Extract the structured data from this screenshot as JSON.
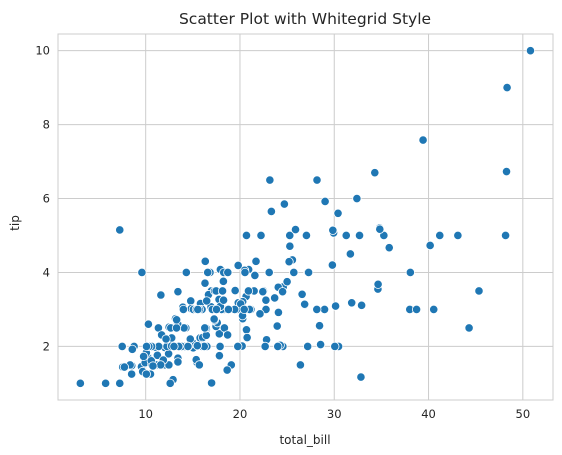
{
  "chart_data": {
    "type": "scatter",
    "title": "Scatter Plot with Whitegrid Style",
    "xlabel": "total_bill",
    "ylabel": "tip",
    "xlim": [
      0.7,
      53.2
    ],
    "ylim": [
      0.55,
      10.45
    ],
    "xticks": [
      10,
      20,
      30,
      40,
      50
    ],
    "yticks": [
      2,
      4,
      6,
      8,
      10
    ],
    "grid": true,
    "series": [
      {
        "color": "#1f77b4",
        "x": [
          16.99,
          10.34,
          21.01,
          23.68,
          24.59,
          25.29,
          8.77,
          26.88,
          15.04,
          14.78,
          10.27,
          35.26,
          15.42,
          18.43,
          14.83,
          21.58,
          10.33,
          16.29,
          16.97,
          20.65,
          17.92,
          20.29,
          15.77,
          39.42,
          19.82,
          17.81,
          13.37,
          12.69,
          21.7,
          19.65,
          9.55,
          18.35,
          15.06,
          20.69,
          17.78,
          24.06,
          16.31,
          16.93,
          18.69,
          31.27,
          16.04,
          17.46,
          13.94,
          9.68,
          30.4,
          18.29,
          22.23,
          32.4,
          28.55,
          18.04,
          12.54,
          10.29,
          34.81,
          9.94,
          25.56,
          19.49,
          38.01,
          26.41,
          11.24,
          48.27,
          20.29,
          13.81,
          11.02,
          18.29,
          17.59,
          20.08,
          16.45,
          3.07,
          20.23,
          15.01,
          12.02,
          17.07,
          26.86,
          25.28,
          14.73,
          10.51,
          17.92,
          27.2,
          22.76,
          17.29,
          19.44,
          16.66,
          10.07,
          32.68,
          15.98,
          34.83,
          13.03,
          18.28,
          24.71,
          21.16,
          28.97,
          22.49,
          5.75,
          16.32,
          22.75,
          40.17,
          27.28,
          12.03,
          21.01,
          12.46,
          11.35,
          15.38,
          44.3,
          22.42,
          20.92,
          15.36,
          20.49,
          25.21,
          18.24,
          14.31,
          14.0,
          7.25,
          38.07,
          23.95,
          25.71,
          17.31,
          29.93,
          10.65,
          12.43,
          24.08,
          11.69,
          13.42,
          14.26,
          15.95,
          12.48,
          29.8,
          8.52,
          14.52,
          11.38,
          22.82,
          19.08,
          20.27,
          11.17,
          12.26,
          18.26,
          8.51,
          10.33,
          14.15,
          16.0,
          13.16,
          17.47,
          34.3,
          41.19,
          27.05,
          16.43,
          8.35,
          18.64,
          11.87,
          9.78,
          7.51,
          14.07,
          13.13,
          17.26,
          24.55,
          19.77,
          29.85,
          48.17,
          25.0,
          13.39,
          16.49,
          21.5,
          12.66,
          16.21,
          13.81,
          17.51,
          24.52,
          20.76,
          31.71,
          10.59,
          10.63,
          50.81,
          15.81,
          7.25,
          31.85,
          16.82,
          32.9,
          17.89,
          14.48,
          9.6,
          34.63,
          34.65,
          23.33,
          45.35,
          23.17,
          40.55,
          20.69,
          20.9,
          30.46,
          18.15,
          23.1,
          15.69,
          19.81,
          28.44,
          15.48,
          16.58,
          7.56,
          10.34,
          43.11,
          13.0,
          13.51,
          18.71,
          12.74,
          13.0,
          16.4,
          20.53,
          16.47,
          26.59,
          38.73,
          24.27,
          12.76,
          30.06,
          25.89,
          48.33,
          13.27,
          28.17,
          12.9,
          28.15,
          11.59,
          7.74,
          30.14,
          12.16,
          13.42,
          8.58,
          15.98,
          13.42,
          16.27,
          10.09,
          20.45,
          13.28,
          22.12,
          24.01,
          15.69,
          11.61,
          10.77,
          15.53,
          10.07,
          12.6,
          32.83,
          35.83,
          29.03,
          27.18,
          22.67,
          17.82,
          18.78
        ],
        "y": [
          1.01,
          1.66,
          3.5,
          3.31,
          3.61,
          4.71,
          2.0,
          3.12,
          1.96,
          3.23,
          1.71,
          5.0,
          1.57,
          3.0,
          3.02,
          3.92,
          1.67,
          3.71,
          3.5,
          3.35,
          4.08,
          2.75,
          2.23,
          7.58,
          3.18,
          2.34,
          2.0,
          2.0,
          4.3,
          3.0,
          1.45,
          2.5,
          3.0,
          2.45,
          3.27,
          3.6,
          2.0,
          3.07,
          2.31,
          5.0,
          2.24,
          2.54,
          3.06,
          1.32,
          5.6,
          3.0,
          5.0,
          6.0,
          2.05,
          3.0,
          2.5,
          2.6,
          5.2,
          1.56,
          4.34,
          3.51,
          3.0,
          1.5,
          1.76,
          6.73,
          3.21,
          2.0,
          1.98,
          3.76,
          2.64,
          3.15,
          2.47,
          1.0,
          2.01,
          2.09,
          1.97,
          3.0,
          3.14,
          5.0,
          2.2,
          1.25,
          3.08,
          4.0,
          3.0,
          2.71,
          3.0,
          3.4,
          1.83,
          5.0,
          2.03,
          5.17,
          2.0,
          4.0,
          5.85,
          3.0,
          3.0,
          3.5,
          1.0,
          4.3,
          3.25,
          4.73,
          4.0,
          1.5,
          3.0,
          1.5,
          2.5,
          3.0,
          2.5,
          3.48,
          4.08,
          1.64,
          4.06,
          4.29,
          3.76,
          4.0,
          3.0,
          1.0,
          4.0,
          2.55,
          4.0,
          3.5,
          5.07,
          1.5,
          1.8,
          2.92,
          2.31,
          1.68,
          2.5,
          2.0,
          2.52,
          4.2,
          1.48,
          2.0,
          2.0,
          2.18,
          1.5,
          2.83,
          1.5,
          2.0,
          3.25,
          1.25,
          2.0,
          2.0,
          2.0,
          2.75,
          3.5,
          6.7,
          5.0,
          5.0,
          2.3,
          1.5,
          1.36,
          1.63,
          1.73,
          2.0,
          2.5,
          2.0,
          2.74,
          2.0,
          2.0,
          5.14,
          5.0,
          3.75,
          2.61,
          2.0,
          3.5,
          2.5,
          2.0,
          2.0,
          3.0,
          3.48,
          2.24,
          4.5,
          1.61,
          2.0,
          10.0,
          3.16,
          5.15,
          3.18,
          4.0,
          3.11,
          2.0,
          2.0,
          4.0,
          3.55,
          3.68,
          5.65,
          3.5,
          6.5,
          3.0,
          5.0,
          3.5,
          2.0,
          3.5,
          4.0,
          1.5,
          4.19,
          2.56,
          2.02,
          4.0,
          1.44,
          2.0,
          5.0,
          2.0,
          2.0,
          4.0,
          2.01,
          2.0,
          2.5,
          4.0,
          3.23,
          3.41,
          3.0,
          2.03,
          2.23,
          2.0,
          5.16,
          9.0,
          2.5,
          6.5,
          1.1,
          3.0,
          1.5,
          1.44,
          3.09,
          2.2,
          3.48,
          1.92,
          3.0,
          1.58,
          2.5,
          2.0,
          3.0,
          2.72,
          2.88,
          2.0,
          3.0,
          3.39,
          1.47,
          3.0,
          1.25,
          1.0,
          1.17,
          4.67,
          5.92,
          2.0,
          2.0,
          1.75,
          3.0
        ]
      }
    ]
  }
}
